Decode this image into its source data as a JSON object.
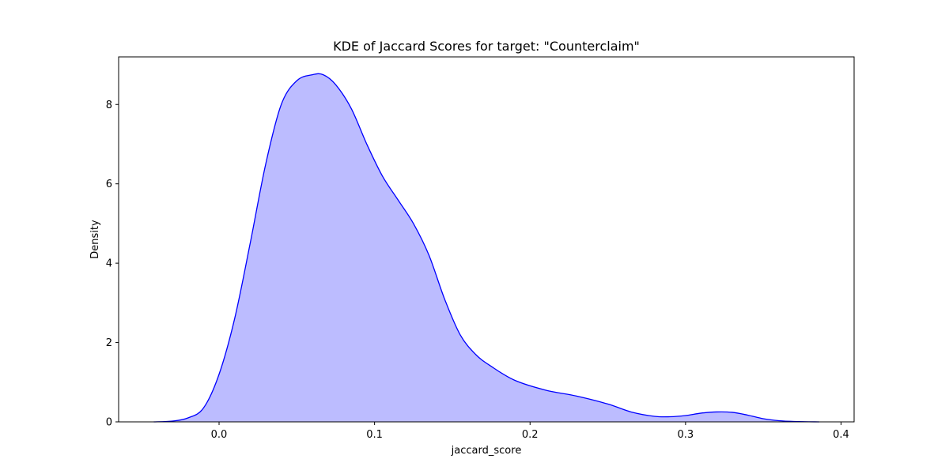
{
  "chart_data": {
    "type": "area",
    "title": "KDE of Jaccard Scores for target: \"Counterclaim\"",
    "xlabel": "jaccard_score",
    "ylabel": "Density",
    "xlim": [
      -0.0646,
      0.4084
    ],
    "ylim": [
      0,
      9.2
    ],
    "xticks": [
      0.0,
      0.1,
      0.2,
      0.3,
      0.4
    ],
    "xtick_labels": [
      "0.0",
      "0.1",
      "0.2",
      "0.3",
      "0.4"
    ],
    "yticks": [
      0,
      2,
      4,
      6,
      8
    ],
    "ytick_labels": [
      "0",
      "2",
      "4",
      "6",
      "8"
    ],
    "grid": false,
    "legend": false,
    "line_color": "#0000ff",
    "fill_color": "#bcbcff",
    "series": [
      {
        "x": [
          -0.042,
          -0.03,
          -0.02,
          -0.01,
          0.0,
          0.01,
          0.02,
          0.03,
          0.04,
          0.05,
          0.06,
          0.067,
          0.075,
          0.085,
          0.095,
          0.105,
          0.115,
          0.125,
          0.135,
          0.145,
          0.155,
          0.165,
          0.175,
          0.19,
          0.21,
          0.23,
          0.25,
          0.265,
          0.28,
          0.29,
          0.3,
          0.31,
          0.32,
          0.33,
          0.34,
          0.35,
          0.36,
          0.37,
          0.386
        ],
        "y": [
          0.0,
          0.02,
          0.1,
          0.35,
          1.2,
          2.6,
          4.5,
          6.5,
          8.0,
          8.6,
          8.75,
          8.75,
          8.5,
          7.9,
          7.0,
          6.2,
          5.6,
          5.0,
          4.2,
          3.1,
          2.2,
          1.7,
          1.4,
          1.05,
          0.8,
          0.65,
          0.45,
          0.25,
          0.14,
          0.13,
          0.16,
          0.22,
          0.25,
          0.24,
          0.17,
          0.08,
          0.03,
          0.01,
          0.0
        ]
      }
    ]
  }
}
